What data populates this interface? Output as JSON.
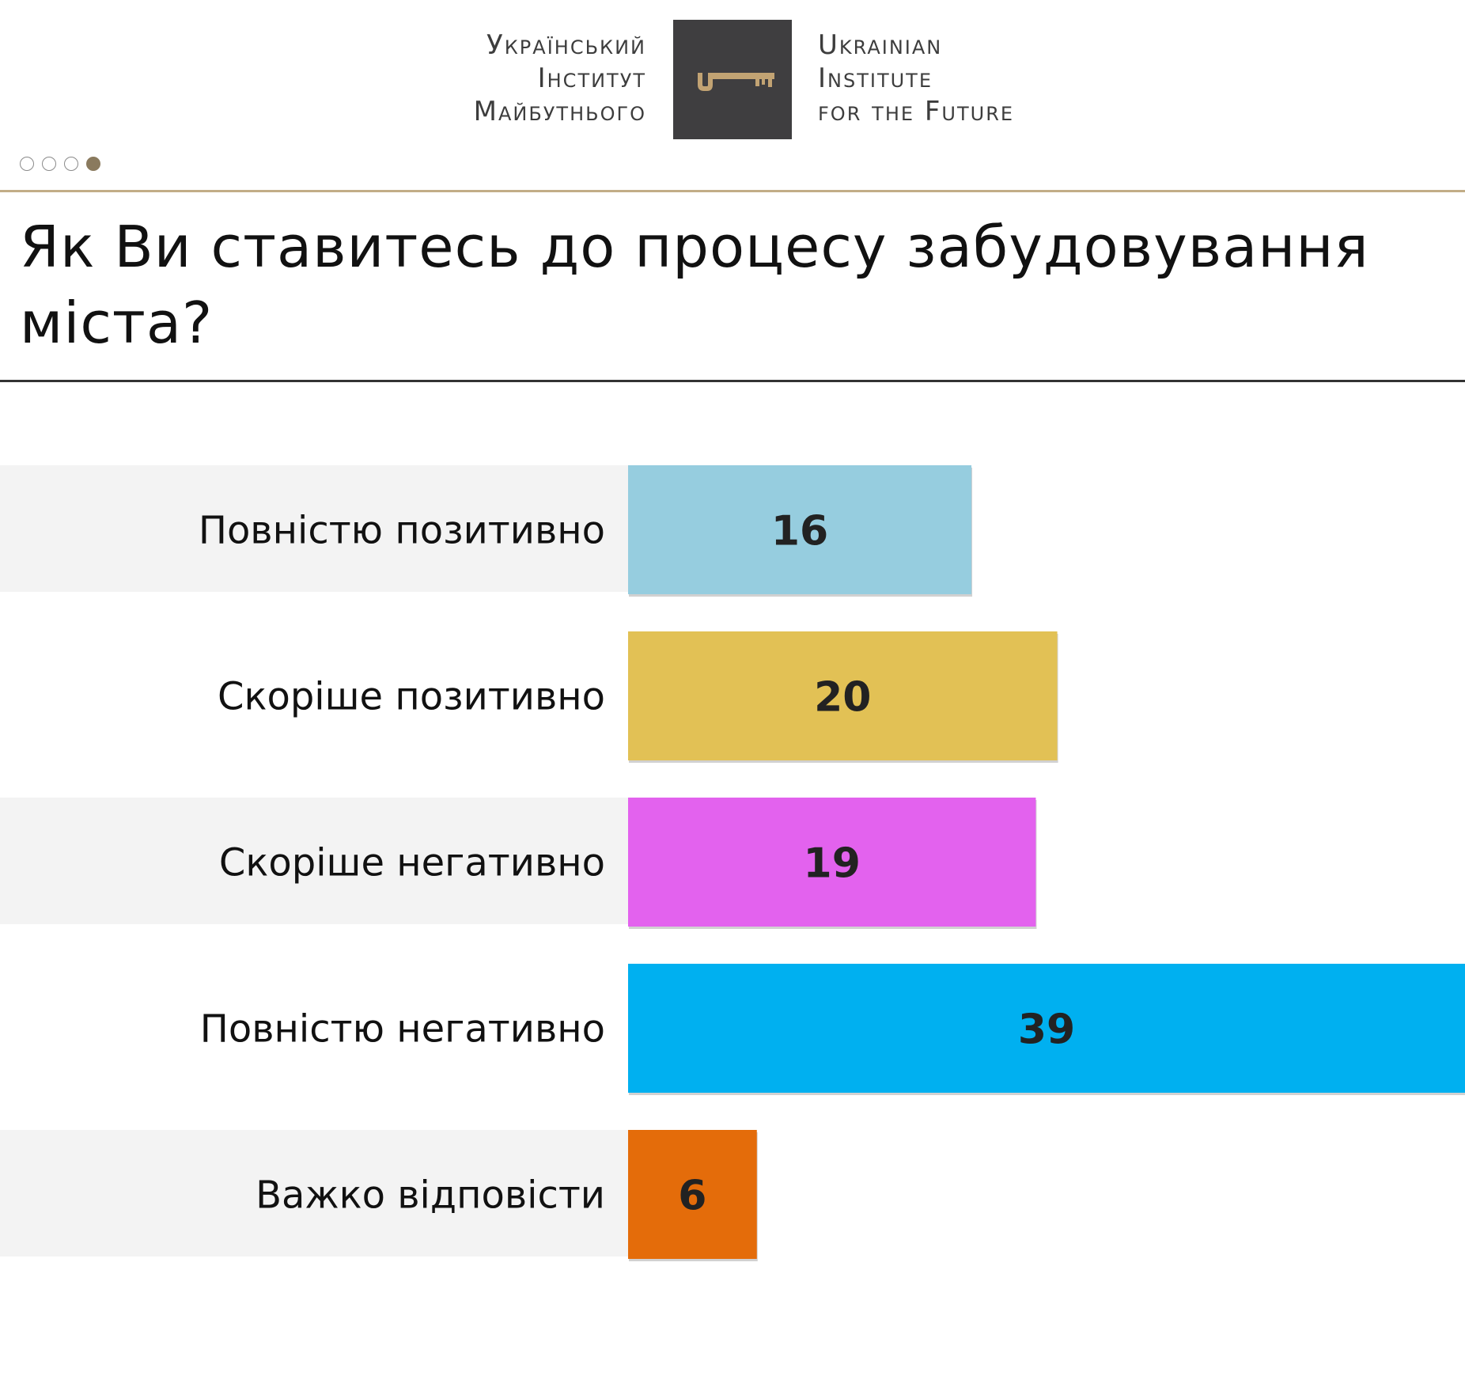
{
  "header": {
    "logo_left": [
      "Український",
      "Інститут",
      "Майбутнього"
    ],
    "logo_right": [
      "Ukrainian",
      "Institute",
      "for the Future"
    ],
    "logo_icon": "key-icon",
    "pager": {
      "total": 4,
      "active": 4
    }
  },
  "colors": {
    "gold": "#c2ad87",
    "logo_bg": "#3f3e40",
    "key": "#c2a373",
    "row_band": "#f3f3f3"
  },
  "chart_data": {
    "type": "bar",
    "orientation": "horizontal",
    "title": "Як Ви ставитесь до процесу забудовування міста?",
    "categories": [
      "Повністю позитивно",
      "Скоріше позитивно",
      "Скоріше негативно",
      "Повністю негативно",
      "Важко відповісти"
    ],
    "values": [
      16,
      20,
      19,
      39,
      6
    ],
    "bar_colors": [
      "#96cddf",
      "#e2c155",
      "#e362ee",
      "#00b0f0",
      "#e46c0a"
    ],
    "xlim": [
      0,
      39
    ],
    "grid": false,
    "legend": "none"
  }
}
